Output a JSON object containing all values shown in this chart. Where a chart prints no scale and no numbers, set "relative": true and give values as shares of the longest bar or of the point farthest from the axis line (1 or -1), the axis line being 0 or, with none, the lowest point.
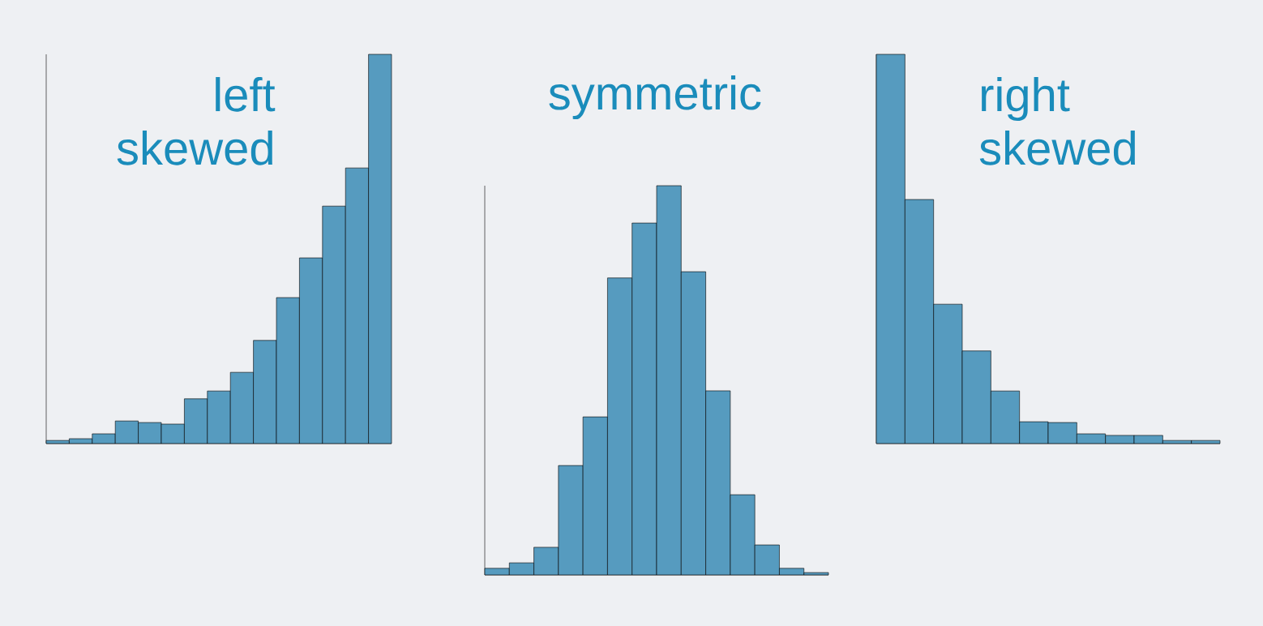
{
  "chart_data": [
    {
      "type": "bar",
      "title": "left skewed",
      "relative": true,
      "color": "#569bbf",
      "categories": [
        null,
        null,
        null,
        null,
        null,
        null,
        null,
        null,
        null,
        null,
        null,
        null,
        null,
        null,
        null
      ],
      "values": [
        0.008,
        0.0125,
        0.025,
        0.058,
        0.054,
        0.05,
        0.115,
        0.135,
        0.183,
        0.265,
        0.375,
        0.477,
        0.61,
        0.708,
        1
      ]
    },
    {
      "type": "bar",
      "title": "symmetric",
      "relative": true,
      "color": "#569bbf",
      "categories": [
        null,
        null,
        null,
        null,
        null,
        null,
        null,
        null,
        null,
        null,
        null,
        null,
        null,
        null
      ],
      "values": [
        0.017,
        0.031,
        0.071,
        0.281,
        0.406,
        0.763,
        0.904,
        1,
        0.779,
        0.473,
        0.206,
        0.077,
        0.017,
        0.006
      ]
    },
    {
      "type": "bar",
      "title": "right skewed",
      "relative": true,
      "color": "#569bbf",
      "categories": [
        null,
        null,
        null,
        null,
        null,
        null,
        null,
        null,
        null,
        null,
        null,
        null
      ],
      "values": [
        1,
        0.627,
        0.358,
        0.238,
        0.135,
        0.056,
        0.054,
        0.025,
        0.021,
        0.021,
        0.008,
        0.008
      ]
    }
  ]
}
